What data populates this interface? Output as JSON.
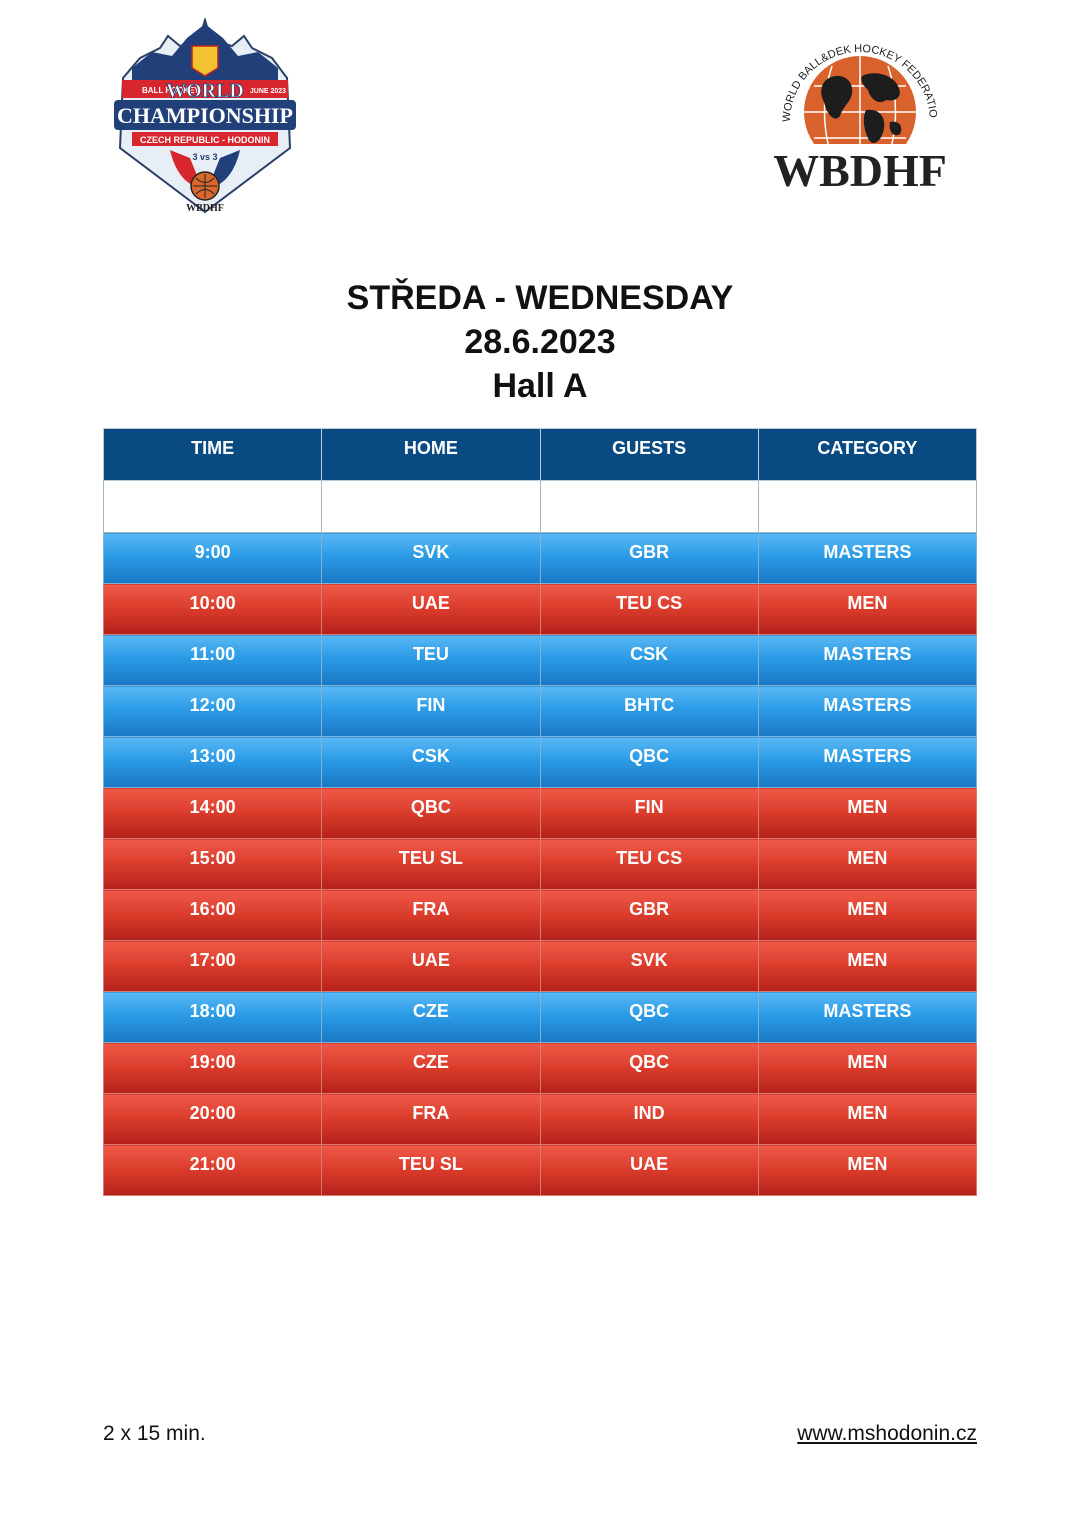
{
  "logos": {
    "left": {
      "text": [
        "BALL HOCKEY",
        "WORLD",
        "JUNE 2023",
        "CHAMPIONSHIP",
        "CZECH REPUBLIC - HODONIN",
        "3 vs 3",
        "WBDHF"
      ]
    },
    "right": {
      "ring_text": "WORLD BALL&DEK HOCKEY FEDERATION",
      "acronym": "WBDHF"
    }
  },
  "heading": {
    "day": "STŘEDA - WEDNESDAY",
    "date": "28.6.2023",
    "hall": "Hall A"
  },
  "table": {
    "columns": [
      "TIME",
      "HOME",
      "GUESTS",
      "CATEGORY"
    ],
    "rows": [
      {
        "time": "9:00",
        "home": "SVK",
        "guests": "GBR",
        "category": "MASTERS"
      },
      {
        "time": "10:00",
        "home": "UAE",
        "guests": "TEU CS",
        "category": "MEN"
      },
      {
        "time": "11:00",
        "home": "TEU",
        "guests": "CSK",
        "category": "MASTERS"
      },
      {
        "time": "12:00",
        "home": "FIN",
        "guests": "BHTC",
        "category": "MASTERS"
      },
      {
        "time": "13:00",
        "home": "CSK",
        "guests": "QBC",
        "category": "MASTERS"
      },
      {
        "time": "14:00",
        "home": "QBC",
        "guests": "FIN",
        "category": "MEN"
      },
      {
        "time": "15:00",
        "home": "TEU SL",
        "guests": "TEU CS",
        "category": "MEN"
      },
      {
        "time": "16:00",
        "home": "FRA",
        "guests": "GBR",
        "category": "MEN"
      },
      {
        "time": "17:00",
        "home": "UAE",
        "guests": "SVK",
        "category": "MEN"
      },
      {
        "time": "18:00",
        "home": "CZE",
        "guests": "QBC",
        "category": "MASTERS"
      },
      {
        "time": "19:00",
        "home": "CZE",
        "guests": "QBC",
        "category": "MEN"
      },
      {
        "time": "20:00",
        "home": "FRA",
        "guests": "IND",
        "category": "MEN"
      },
      {
        "time": "21:00",
        "home": "TEU SL",
        "guests": "UAE",
        "category": "MEN"
      }
    ]
  },
  "footer": {
    "duration": "2 x 15 min.",
    "website": "www.mshodonin.cz"
  },
  "colors": {
    "header": "#0a4a82",
    "masters": "#2b9be6",
    "men": "#d93b2b"
  }
}
